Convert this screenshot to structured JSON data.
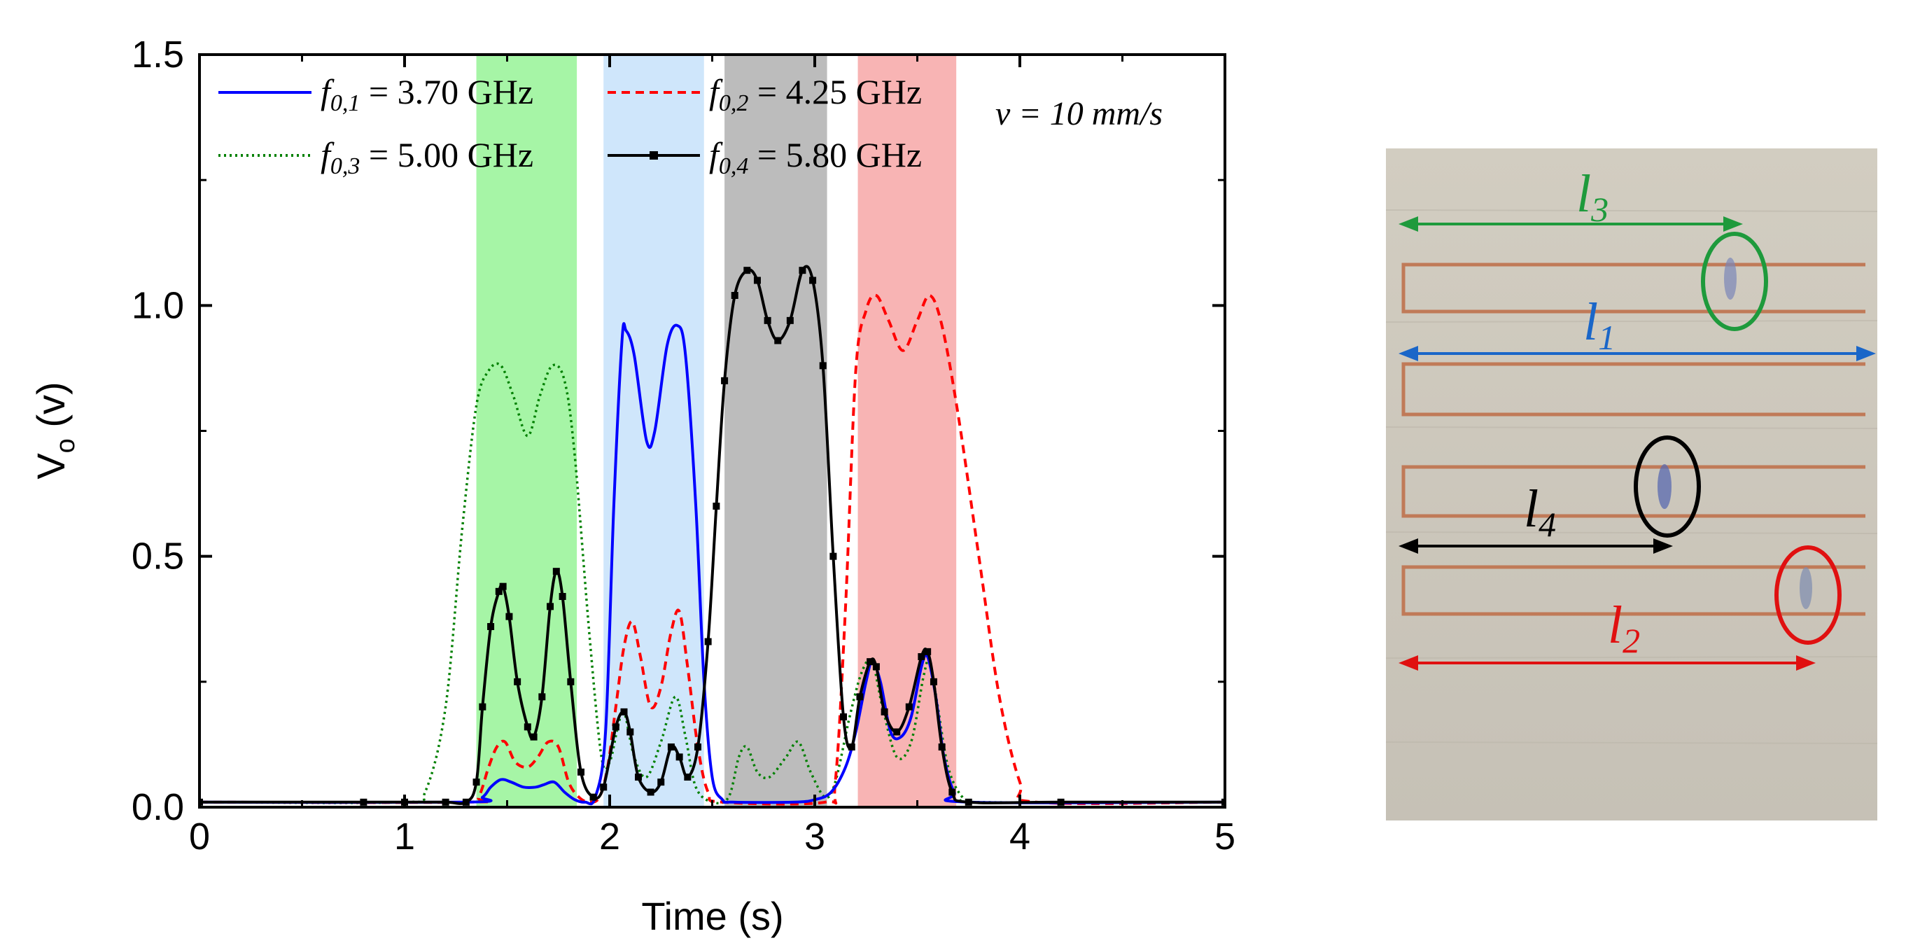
{
  "chart_data": {
    "type": "line",
    "xlabel": "Time (s)",
    "ylabel_main": "V",
    "ylabel_sub": "o",
    "ylabel_unit": " (v)",
    "xlim": [
      0,
      5
    ],
    "ylim": [
      0,
      1.5
    ],
    "x_ticks": [
      0,
      1,
      2,
      3,
      4,
      5
    ],
    "x_tick_labels": [
      "0",
      "1",
      "2",
      "3",
      "4",
      "5"
    ],
    "y_ticks": [
      0,
      0.5,
      1.0,
      1.5
    ],
    "y_tick_labels": [
      "0.0",
      "0.5",
      "1.0",
      "1.5"
    ],
    "annotation_speed": "v = 10 mm/s",
    "shaded_regions": [
      {
        "x0": 1.35,
        "x1": 1.84,
        "color": "#a6f5a6"
      },
      {
        "x0": 1.97,
        "x1": 2.46,
        "color": "#cfe6fb"
      },
      {
        "x0": 2.56,
        "x1": 3.06,
        "color": "#bcbcbc"
      },
      {
        "x0": 3.21,
        "x1": 3.69,
        "color": "#f8b4b4"
      }
    ],
    "series": [
      {
        "name": "f_{0,1} = 3.70 GHz",
        "legend_sym": "f",
        "legend_sub": "0,1",
        "legend_value": " = 3.70 GHz",
        "color": "#0000ff",
        "style": "solid",
        "points": [
          [
            0,
            0.01
          ],
          [
            1.3,
            0.01
          ],
          [
            1.38,
            0.02
          ],
          [
            1.42,
            0.04
          ],
          [
            1.47,
            0.055
          ],
          [
            1.52,
            0.05
          ],
          [
            1.58,
            0.04
          ],
          [
            1.64,
            0.04
          ],
          [
            1.68,
            0.045
          ],
          [
            1.73,
            0.05
          ],
          [
            1.78,
            0.03
          ],
          [
            1.83,
            0.015
          ],
          [
            1.88,
            0.01
          ],
          [
            1.93,
            0.02
          ],
          [
            1.98,
            0.15
          ],
          [
            2.02,
            0.6
          ],
          [
            2.06,
            0.93
          ],
          [
            2.08,
            0.95
          ],
          [
            2.12,
            0.9
          ],
          [
            2.18,
            0.73
          ],
          [
            2.22,
            0.75
          ],
          [
            2.28,
            0.92
          ],
          [
            2.33,
            0.96
          ],
          [
            2.37,
            0.9
          ],
          [
            2.42,
            0.6
          ],
          [
            2.46,
            0.25
          ],
          [
            2.5,
            0.06
          ],
          [
            2.55,
            0.015
          ],
          [
            2.6,
            0.01
          ],
          [
            2.9,
            0.01
          ],
          [
            3.0,
            0.015
          ],
          [
            3.08,
            0.03
          ],
          [
            3.15,
            0.08
          ],
          [
            3.2,
            0.15
          ],
          [
            3.25,
            0.25
          ],
          [
            3.28,
            0.29
          ],
          [
            3.32,
            0.25
          ],
          [
            3.37,
            0.15
          ],
          [
            3.42,
            0.14
          ],
          [
            3.47,
            0.18
          ],
          [
            3.52,
            0.28
          ],
          [
            3.55,
            0.3
          ],
          [
            3.59,
            0.22
          ],
          [
            3.63,
            0.1
          ],
          [
            3.68,
            0.03
          ],
          [
            3.75,
            0.01
          ],
          [
            5,
            0.01
          ]
        ]
      },
      {
        "name": "f_{0,2} = 4.25 GHz",
        "legend_sym": "f",
        "legend_sub": "0,2",
        "legend_value": " = 4.25 GHz",
        "color": "#ff0000",
        "style": "dashed",
        "points": [
          [
            0,
            0.01
          ],
          [
            1.3,
            0.01
          ],
          [
            1.36,
            0.02
          ],
          [
            1.41,
            0.08
          ],
          [
            1.45,
            0.12
          ],
          [
            1.49,
            0.13
          ],
          [
            1.54,
            0.09
          ],
          [
            1.6,
            0.08
          ],
          [
            1.65,
            0.1
          ],
          [
            1.7,
            0.13
          ],
          [
            1.75,
            0.12
          ],
          [
            1.8,
            0.05
          ],
          [
            1.85,
            0.02
          ],
          [
            1.9,
            0.01
          ],
          [
            1.95,
            0.02
          ],
          [
            1.99,
            0.08
          ],
          [
            2.03,
            0.2
          ],
          [
            2.07,
            0.32
          ],
          [
            2.11,
            0.37
          ],
          [
            2.15,
            0.3
          ],
          [
            2.2,
            0.2
          ],
          [
            2.25,
            0.24
          ],
          [
            2.3,
            0.35
          ],
          [
            2.34,
            0.39
          ],
          [
            2.38,
            0.28
          ],
          [
            2.43,
            0.12
          ],
          [
            2.48,
            0.03
          ],
          [
            2.55,
            0.01
          ],
          [
            3.05,
            0.01
          ],
          [
            3.1,
            0.05
          ],
          [
            3.15,
            0.4
          ],
          [
            3.2,
            0.87
          ],
          [
            3.25,
            0.99
          ],
          [
            3.3,
            1.02
          ],
          [
            3.36,
            0.97
          ],
          [
            3.43,
            0.91
          ],
          [
            3.5,
            0.97
          ],
          [
            3.56,
            1.02
          ],
          [
            3.62,
            0.96
          ],
          [
            3.7,
            0.78
          ],
          [
            3.8,
            0.5
          ],
          [
            3.9,
            0.22
          ],
          [
            4.0,
            0.05
          ],
          [
            4.08,
            0.01
          ],
          [
            5,
            0.01
          ]
        ]
      },
      {
        "name": "f_{0,3} = 5.00 GHz",
        "legend_sym": "f",
        "legend_sub": "0,3",
        "legend_value": " = 5.00 GHz",
        "color": "#008000",
        "style": "dotted",
        "points": [
          [
            0,
            0.01
          ],
          [
            1.0,
            0.01
          ],
          [
            1.1,
            0.03
          ],
          [
            1.2,
            0.2
          ],
          [
            1.28,
            0.55
          ],
          [
            1.35,
            0.8
          ],
          [
            1.41,
            0.87
          ],
          [
            1.47,
            0.88
          ],
          [
            1.53,
            0.82
          ],
          [
            1.6,
            0.74
          ],
          [
            1.66,
            0.82
          ],
          [
            1.72,
            0.88
          ],
          [
            1.78,
            0.85
          ],
          [
            1.83,
            0.7
          ],
          [
            1.9,
            0.35
          ],
          [
            1.96,
            0.1
          ],
          [
            2.0,
            0.09
          ],
          [
            2.04,
            0.16
          ],
          [
            2.07,
            0.19
          ],
          [
            2.12,
            0.1
          ],
          [
            2.18,
            0.06
          ],
          [
            2.25,
            0.13
          ],
          [
            2.32,
            0.22
          ],
          [
            2.37,
            0.14
          ],
          [
            2.42,
            0.04
          ],
          [
            2.5,
            0.01
          ],
          [
            2.58,
            0.02
          ],
          [
            2.63,
            0.1
          ],
          [
            2.67,
            0.12
          ],
          [
            2.72,
            0.07
          ],
          [
            2.78,
            0.06
          ],
          [
            2.86,
            0.1
          ],
          [
            2.92,
            0.13
          ],
          [
            2.98,
            0.07
          ],
          [
            3.05,
            0.02
          ],
          [
            3.1,
            0.05
          ],
          [
            3.17,
            0.18
          ],
          [
            3.23,
            0.27
          ],
          [
            3.28,
            0.29
          ],
          [
            3.33,
            0.2
          ],
          [
            3.4,
            0.1
          ],
          [
            3.47,
            0.13
          ],
          [
            3.53,
            0.26
          ],
          [
            3.56,
            0.29
          ],
          [
            3.6,
            0.2
          ],
          [
            3.65,
            0.08
          ],
          [
            3.72,
            0.02
          ],
          [
            3.8,
            0.01
          ],
          [
            5,
            0.01
          ]
        ]
      },
      {
        "name": "f_{0,4} = 5.80 GHz",
        "legend_sym": "f",
        "legend_sub": "0,4",
        "legend_value": " = 5.80 GHz",
        "color": "#000000",
        "style": "solid-marker",
        "points": [
          [
            0,
            0.01
          ],
          [
            0.8,
            0.01
          ],
          [
            1.0,
            0.01
          ],
          [
            1.2,
            0.01
          ],
          [
            1.3,
            0.01
          ],
          [
            1.35,
            0.05
          ],
          [
            1.38,
            0.2
          ],
          [
            1.42,
            0.36
          ],
          [
            1.46,
            0.43
          ],
          [
            1.48,
            0.44
          ],
          [
            1.51,
            0.38
          ],
          [
            1.55,
            0.25
          ],
          [
            1.6,
            0.16
          ],
          [
            1.63,
            0.14
          ],
          [
            1.67,
            0.22
          ],
          [
            1.71,
            0.4
          ],
          [
            1.74,
            0.47
          ],
          [
            1.77,
            0.42
          ],
          [
            1.81,
            0.25
          ],
          [
            1.86,
            0.07
          ],
          [
            1.92,
            0.02
          ],
          [
            1.97,
            0.04
          ],
          [
            2.03,
            0.16
          ],
          [
            2.07,
            0.19
          ],
          [
            2.1,
            0.15
          ],
          [
            2.14,
            0.06
          ],
          [
            2.2,
            0.03
          ],
          [
            2.25,
            0.05
          ],
          [
            2.3,
            0.12
          ],
          [
            2.34,
            0.1
          ],
          [
            2.38,
            0.06
          ],
          [
            2.43,
            0.12
          ],
          [
            2.48,
            0.33
          ],
          [
            2.52,
            0.6
          ],
          [
            2.56,
            0.85
          ],
          [
            2.61,
            1.02
          ],
          [
            2.67,
            1.07
          ],
          [
            2.72,
            1.05
          ],
          [
            2.77,
            0.97
          ],
          [
            2.82,
            0.93
          ],
          [
            2.88,
            0.97
          ],
          [
            2.94,
            1.07
          ],
          [
            2.99,
            1.05
          ],
          [
            3.04,
            0.88
          ],
          [
            3.09,
            0.5
          ],
          [
            3.14,
            0.18
          ],
          [
            3.18,
            0.12
          ],
          [
            3.22,
            0.22
          ],
          [
            3.27,
            0.29
          ],
          [
            3.3,
            0.28
          ],
          [
            3.34,
            0.19
          ],
          [
            3.4,
            0.15
          ],
          [
            3.46,
            0.2
          ],
          [
            3.52,
            0.3
          ],
          [
            3.55,
            0.31
          ],
          [
            3.58,
            0.25
          ],
          [
            3.62,
            0.12
          ],
          [
            3.67,
            0.03
          ],
          [
            3.75,
            0.01
          ],
          [
            4.2,
            0.01
          ],
          [
            5,
            0.01
          ]
        ]
      }
    ]
  },
  "photo": {
    "labels": {
      "l3": {
        "letter": "l",
        "sub": "3",
        "color": "#1e9a3c"
      },
      "l1": {
        "letter": "l",
        "sub": "1",
        "color": "#1a66c8"
      },
      "l4": {
        "letter": "l",
        "sub": "4",
        "color": "#000000"
      },
      "l2": {
        "letter": "l",
        "sub": "2",
        "color": "#e01010"
      }
    },
    "colors": {
      "background": "#cdc8bd",
      "trace": "#c07a58"
    }
  }
}
